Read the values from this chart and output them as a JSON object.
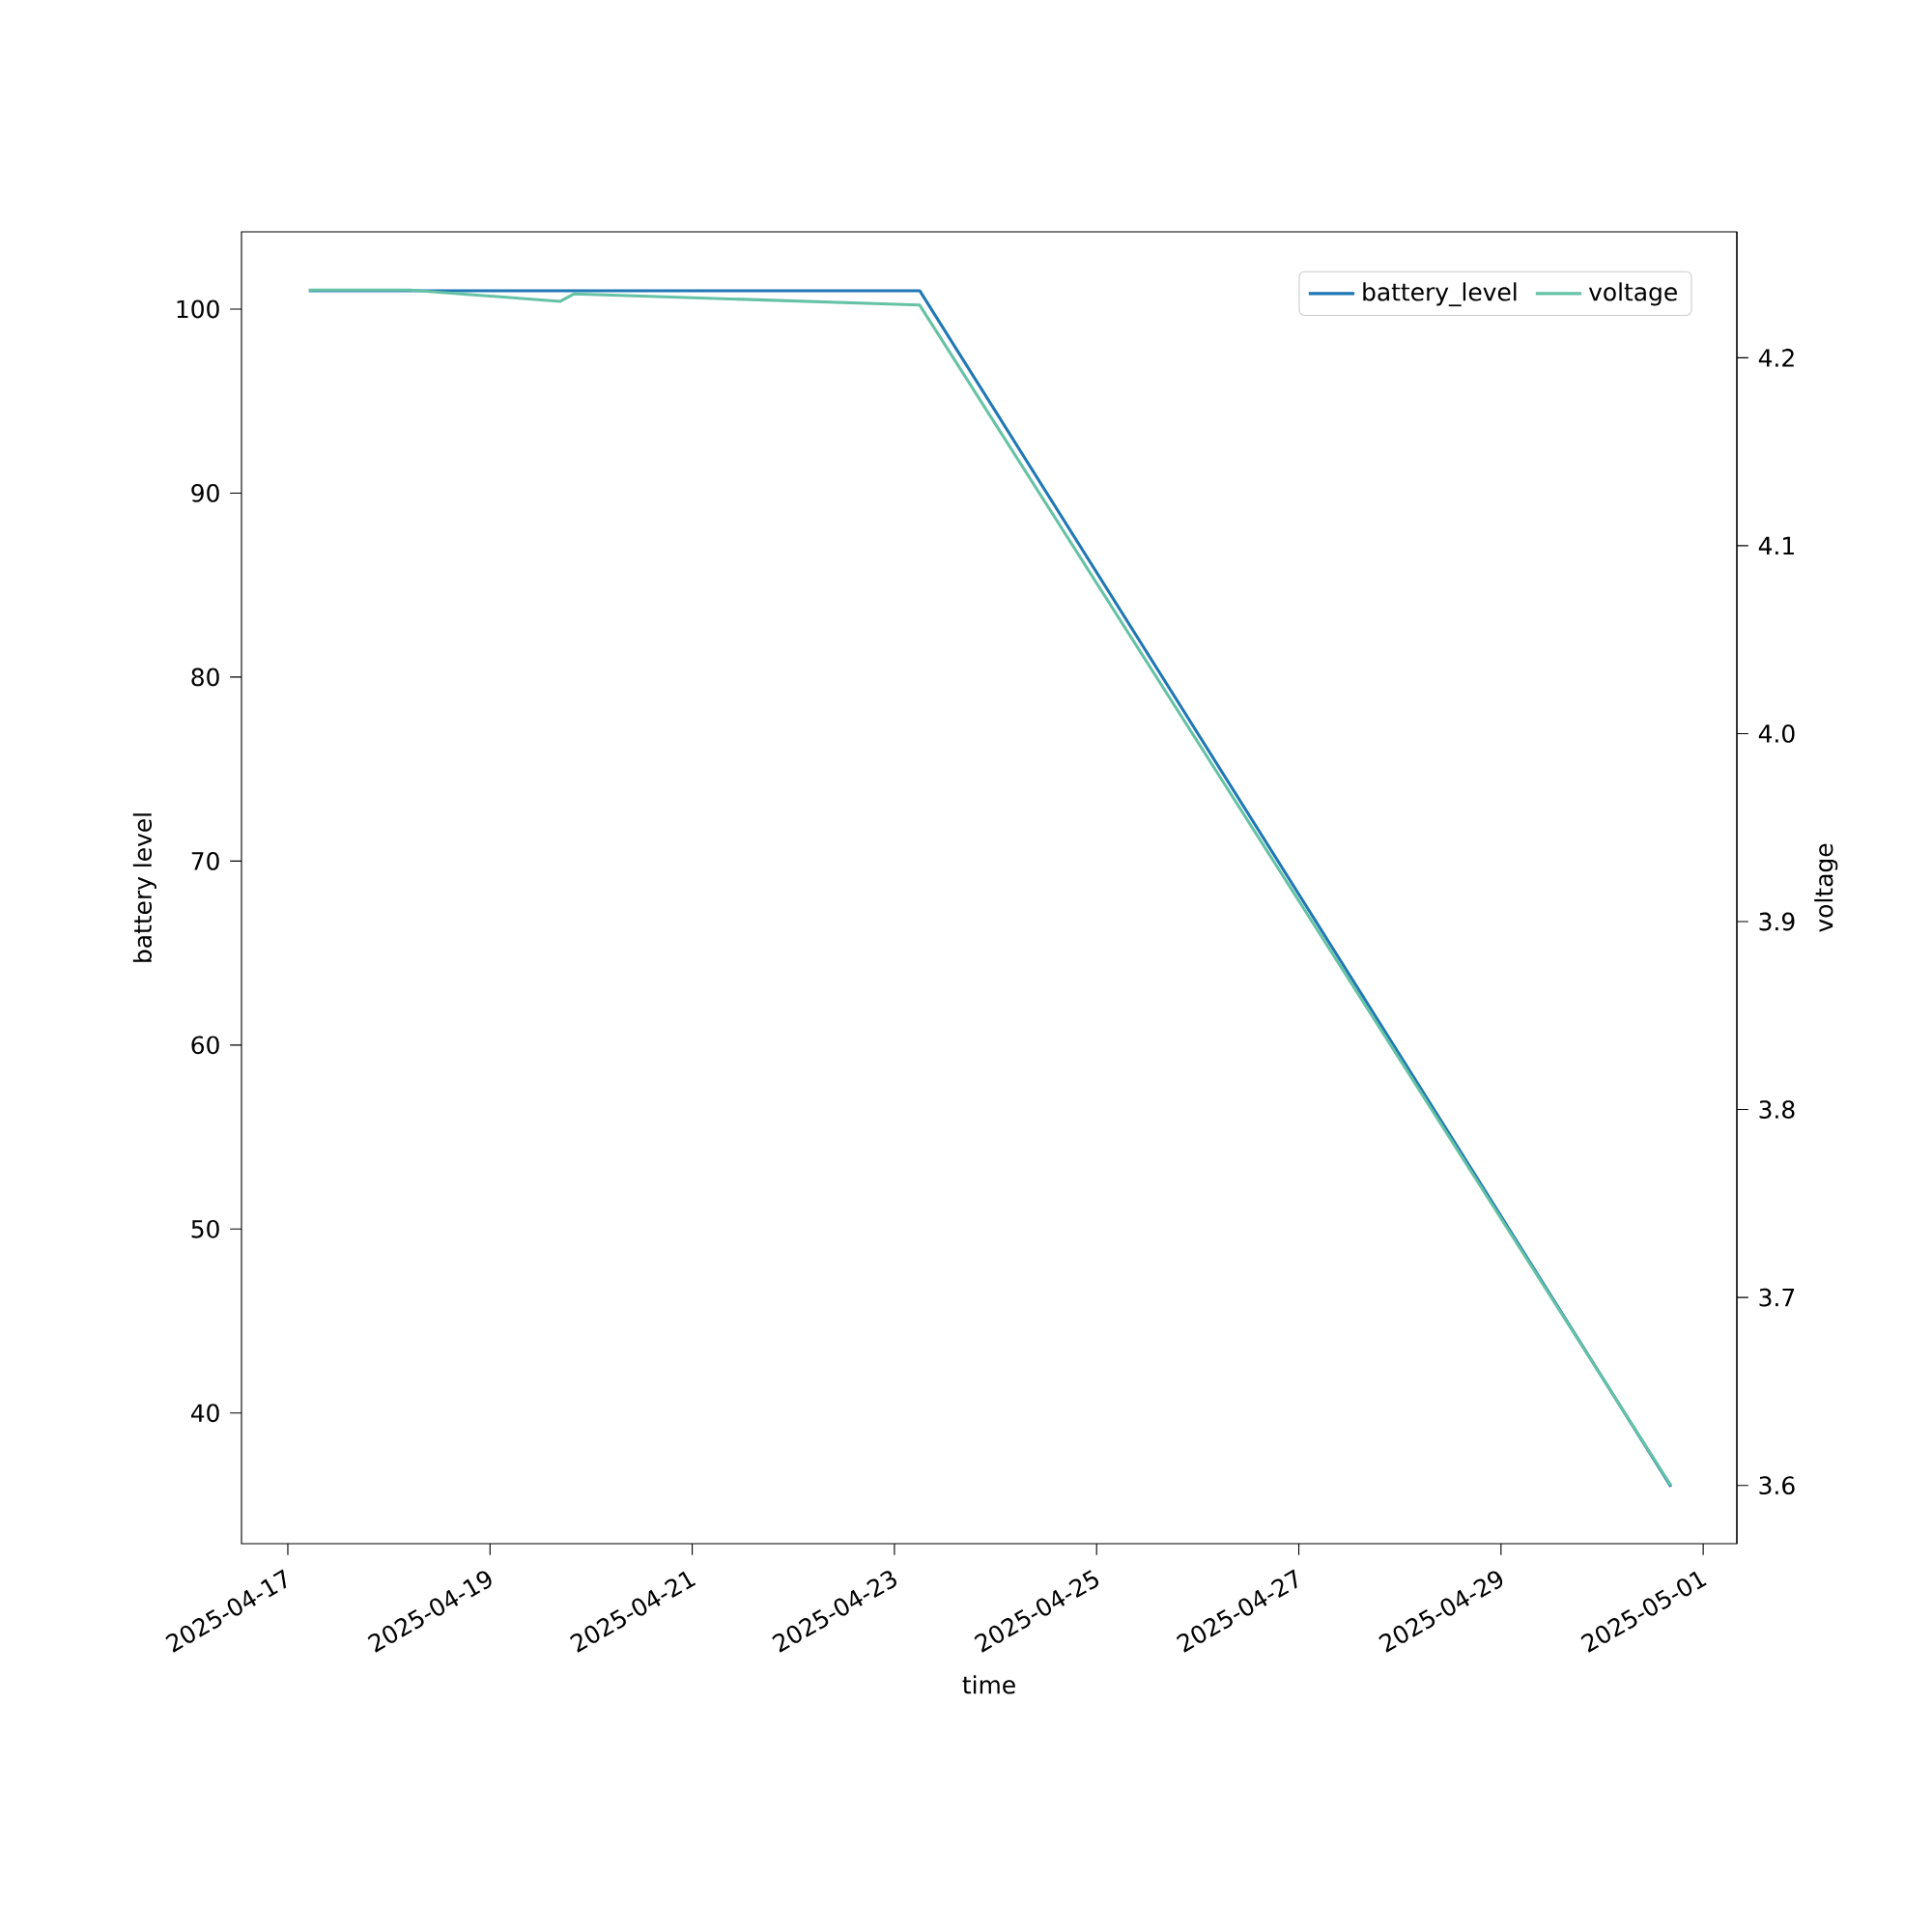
{
  "chart_data": {
    "type": "line",
    "xlabel": "time",
    "ylabel": "battery level",
    "y2label": "voltage",
    "xlim": [
      "2025-04-16T13:00",
      "2025-05-01T08:00"
    ],
    "xticks": [
      "2025-04-17",
      "2025-04-19",
      "2025-04-21",
      "2025-04-23",
      "2025-04-25",
      "2025-04-27",
      "2025-04-29",
      "2025-05-01"
    ],
    "ylim": [
      32.9,
      104.2
    ],
    "yticks": [
      40,
      50,
      60,
      70,
      80,
      90,
      100
    ],
    "y2lim": [
      3.569,
      4.267
    ],
    "y2ticks": [
      3.6,
      3.7,
      3.8,
      3.9,
      {
        "value": 4.0,
        "label": "4.0"
      },
      4.1,
      4.2
    ],
    "legend": "top right",
    "grid": false,
    "series": [
      {
        "name": "battery_level",
        "color": "#1f77b4",
        "x": [
          "2025-04-17T05:00",
          "2025-04-23T06:00",
          "2025-04-30T16:20"
        ],
        "values": [
          101,
          101,
          36
        ]
      },
      {
        "name": "voltage",
        "color": "#66c2a5",
        "axis": "y2",
        "x": [
          "2025-04-17T05:00",
          "2025-04-18T05:00",
          "2025-04-19T16:40",
          "2025-04-19T20:00",
          "2025-04-23T06:00",
          "2025-04-30T16:20"
        ],
        "values": [
          4.236,
          4.236,
          4.23,
          4.234,
          4.228,
          3.6
        ]
      }
    ]
  }
}
